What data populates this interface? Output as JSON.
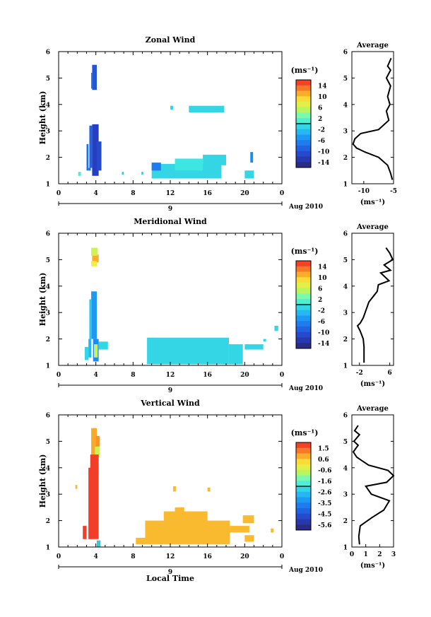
{
  "figure": {
    "xlabel_bottom": "Local Time",
    "date_label": "Aug 2010",
    "day_label": "9",
    "colorbar_unit": "(ms⁻¹)"
  },
  "chart_data": [
    {
      "type": "heatmap",
      "title": "Zonal Wind",
      "ylabel": "Height (km)",
      "xlabel": "Local Time",
      "xlim": [
        0,
        24
      ],
      "ylim": [
        1,
        6
      ],
      "xticks": [
        "0",
        "4",
        "8",
        "12",
        "16",
        "20",
        "0"
      ],
      "yticks": [
        "1",
        "2",
        "3",
        "4",
        "5",
        "6"
      ],
      "colorbar": {
        "unit": "(ms⁻¹)",
        "ticks": [
          "14",
          "10",
          "6",
          "2",
          "-2",
          "-6",
          "-10",
          "-14"
        ],
        "range": [
          -16,
          16
        ]
      },
      "cells": [
        {
          "x0": 3.6,
          "x1": 4.1,
          "y0": 4.55,
          "y1": 5.5,
          "v": -10
        },
        {
          "x0": 3.5,
          "x1": 3.7,
          "y0": 4.6,
          "y1": 5.2,
          "v": -8
        },
        {
          "x0": 3.6,
          "x1": 4.3,
          "y0": 1.3,
          "y1": 3.25,
          "v": -12
        },
        {
          "x0": 3.3,
          "x1": 3.6,
          "y0": 1.6,
          "y1": 3.2,
          "v": -9
        },
        {
          "x0": 3.0,
          "x1": 3.2,
          "y0": 1.5,
          "y1": 2.5,
          "v": -8
        },
        {
          "x0": 3.2,
          "x1": 3.45,
          "y0": 1.5,
          "y1": 1.6,
          "v": -8
        },
        {
          "x0": 4.1,
          "x1": 4.6,
          "y0": 1.5,
          "y1": 2.6,
          "v": -11
        },
        {
          "x0": 10.0,
          "x1": 17.5,
          "y0": 1.2,
          "y1": 1.75,
          "v": -1
        },
        {
          "x0": 10.0,
          "x1": 11.0,
          "y0": 1.5,
          "y1": 1.8,
          "v": -7
        },
        {
          "x0": 12.5,
          "x1": 15.5,
          "y0": 1.5,
          "y1": 1.95,
          "v": 0
        },
        {
          "x0": 15.5,
          "x1": 18.0,
          "y0": 1.7,
          "y1": 2.1,
          "v": -1
        },
        {
          "x0": 20.0,
          "x1": 21.0,
          "y0": 1.2,
          "y1": 1.5,
          "v": -1
        },
        {
          "x0": 20.6,
          "x1": 20.9,
          "y0": 1.8,
          "y1": 2.2,
          "v": -6
        },
        {
          "x0": 14.0,
          "x1": 17.8,
          "y0": 3.7,
          "y1": 3.95,
          "v": -1
        },
        {
          "x0": 12.0,
          "x1": 12.3,
          "y0": 3.8,
          "y1": 3.95,
          "v": -1
        },
        {
          "x0": 2.1,
          "x1": 2.4,
          "y0": 1.3,
          "y1": 1.45,
          "v": 1
        },
        {
          "x0": 6.8,
          "x1": 7.0,
          "y0": 1.35,
          "y1": 1.45,
          "v": -2
        },
        {
          "x0": 8.9,
          "x1": 9.1,
          "y0": 1.35,
          "y1": 1.45,
          "v": -2
        }
      ],
      "profile": {
        "title": "Average",
        "xlabel": "(ms⁻¹)",
        "xlim": [
          -12,
          -5
        ],
        "xticks": [
          "-10",
          "-5"
        ],
        "x": [
          -5.4,
          -6.0,
          -5.5,
          -6.2,
          -5.5,
          -6.0,
          -5.6,
          -6.2,
          -5.8,
          -7.5,
          -10.5,
          -11.5,
          -11.8,
          -11.2,
          -9.8,
          -7.5,
          -6.0,
          -5.5,
          -5.2
        ],
        "y": [
          5.75,
          5.45,
          5.3,
          5.0,
          4.7,
          4.3,
          4.0,
          3.75,
          3.4,
          3.05,
          2.9,
          2.7,
          2.5,
          2.35,
          2.2,
          2.0,
          1.7,
          1.4,
          1.15
        ]
      }
    },
    {
      "type": "heatmap",
      "title": "Meridional Wind",
      "ylabel": "Height (km)",
      "xlabel": "Local Time",
      "xlim": [
        0,
        24
      ],
      "ylim": [
        1,
        6
      ],
      "xticks": [
        "0",
        "4",
        "8",
        "12",
        "16",
        "20",
        "0"
      ],
      "yticks": [
        "1",
        "2",
        "3",
        "4",
        "5",
        "6"
      ],
      "colorbar": {
        "unit": "(ms⁻¹)",
        "ticks": [
          "14",
          "10",
          "6",
          "2",
          "-2",
          "-6",
          "-10",
          "-14"
        ],
        "range": [
          -16,
          16
        ]
      },
      "cells": [
        {
          "x0": 3.6,
          "x1": 4.3,
          "y0": 4.9,
          "y1": 5.2,
          "v": 11
        },
        {
          "x0": 3.5,
          "x1": 4.2,
          "y0": 5.15,
          "y1": 5.45,
          "v": 6
        },
        {
          "x0": 3.5,
          "x1": 4.1,
          "y0": 4.75,
          "y1": 4.95,
          "v": 8
        },
        {
          "x0": 3.5,
          "x1": 4.1,
          "y0": 2.0,
          "y1": 3.8,
          "v": -5
        },
        {
          "x0": 3.3,
          "x1": 3.55,
          "y0": 2.0,
          "y1": 3.5,
          "v": -2
        },
        {
          "x0": 3.7,
          "x1": 4.3,
          "y0": 1.15,
          "y1": 2.0,
          "v": -6
        },
        {
          "x0": 3.8,
          "x1": 4.2,
          "y0": 1.3,
          "y1": 1.8,
          "v": 6
        },
        {
          "x0": 3.2,
          "x1": 3.5,
          "y0": 1.3,
          "y1": 2.0,
          "v": -3
        },
        {
          "x0": 2.8,
          "x1": 3.2,
          "y0": 1.2,
          "y1": 1.7,
          "v": -1
        },
        {
          "x0": 4.3,
          "x1": 5.3,
          "y0": 1.6,
          "y1": 1.9,
          "v": -1
        },
        {
          "x0": 9.5,
          "x1": 18.3,
          "y0": 1.05,
          "y1": 2.05,
          "v": -1
        },
        {
          "x0": 18.3,
          "x1": 19.8,
          "y0": 1.05,
          "y1": 1.8,
          "v": -1
        },
        {
          "x0": 20.0,
          "x1": 22.0,
          "y0": 1.6,
          "y1": 1.8,
          "v": -1
        },
        {
          "x0": 23.2,
          "x1": 23.6,
          "y0": 2.3,
          "y1": 2.5,
          "v": -1
        },
        {
          "x0": 22.0,
          "x1": 22.3,
          "y0": 1.9,
          "y1": 2.0,
          "v": -1
        }
      ],
      "profile": {
        "title": "Average",
        "xlabel": "(ms⁻¹)",
        "xlim": [
          -4,
          7
        ],
        "xticks": [
          "-2",
          "6"
        ],
        "x": [
          5.0,
          6.0,
          6.8,
          4.5,
          6.2,
          3.6,
          5.8,
          3.0,
          2.7,
          0.5,
          -0.5,
          -1.0,
          -1.8,
          -2.5,
          -1.8,
          -1.0,
          -0.8,
          -0.8,
          -0.8
        ],
        "y": [
          5.45,
          5.25,
          5.0,
          4.8,
          4.6,
          4.5,
          4.2,
          4.05,
          3.8,
          3.4,
          3.0,
          2.8,
          2.6,
          2.5,
          2.3,
          2.0,
          1.7,
          1.35,
          1.1
        ]
      }
    },
    {
      "type": "heatmap",
      "title": "Vertical Wind",
      "ylabel": "Height (km)",
      "xlabel": "Local Time",
      "xlim": [
        0,
        24
      ],
      "ylim": [
        1,
        6
      ],
      "xticks": [
        "0",
        "4",
        "8",
        "12",
        "16",
        "20",
        "0"
      ],
      "yticks": [
        "1",
        "2",
        "3",
        "4",
        "5",
        "6"
      ],
      "colorbar": {
        "unit": "(ms⁻¹)",
        "ticks": [
          "1.5",
          "0.6",
          "-0.6",
          "-1.6",
          "-2.6",
          "-3.5",
          "-4.5",
          "-5.6"
        ],
        "range": [
          -6,
          2
        ]
      },
      "cells": [
        {
          "x0": 3.5,
          "x1": 4.1,
          "y0": 4.5,
          "y1": 5.5,
          "v": 0.8
        },
        {
          "x0": 3.9,
          "x1": 4.4,
          "y0": 4.4,
          "y1": 4.8,
          "v": -0.5
        },
        {
          "x0": 4.0,
          "x1": 4.4,
          "y0": 4.8,
          "y1": 5.2,
          "v": 1.0
        },
        {
          "x0": 3.4,
          "x1": 4.3,
          "y0": 1.3,
          "y1": 4.5,
          "v": 1.8
        },
        {
          "x0": 3.2,
          "x1": 3.5,
          "y0": 1.3,
          "y1": 4.0,
          "v": 1.8
        },
        {
          "x0": 2.6,
          "x1": 3.0,
          "y0": 1.3,
          "y1": 1.8,
          "v": 1.8
        },
        {
          "x0": 4.1,
          "x1": 4.5,
          "y0": 1.0,
          "y1": 1.25,
          "v": -2.5
        },
        {
          "x0": 9.3,
          "x1": 18.4,
          "y0": 1.1,
          "y1": 2.0,
          "v": 0.6
        },
        {
          "x0": 11.3,
          "x1": 16.0,
          "y0": 1.95,
          "y1": 2.35,
          "v": 0.6
        },
        {
          "x0": 12.5,
          "x1": 13.5,
          "y0": 2.3,
          "y1": 2.5,
          "v": 0.6
        },
        {
          "x0": 8.3,
          "x1": 9.3,
          "y0": 1.1,
          "y1": 1.35,
          "v": 0.6
        },
        {
          "x0": 18.4,
          "x1": 20.5,
          "y0": 1.55,
          "y1": 1.8,
          "v": 0.6
        },
        {
          "x0": 19.8,
          "x1": 21.0,
          "y0": 1.9,
          "y1": 2.2,
          "v": 0.6
        },
        {
          "x0": 20.0,
          "x1": 21.0,
          "y0": 1.2,
          "y1": 1.45,
          "v": 0.6
        },
        {
          "x0": 12.3,
          "x1": 12.6,
          "y0": 3.1,
          "y1": 3.3,
          "v": 0.6
        },
        {
          "x0": 16.0,
          "x1": 16.3,
          "y0": 3.1,
          "y1": 3.25,
          "v": 0.6
        },
        {
          "x0": 1.8,
          "x1": 2.0,
          "y0": 3.2,
          "y1": 3.35,
          "v": 0.6
        },
        {
          "x0": 22.8,
          "x1": 23.1,
          "y0": 1.55,
          "y1": 1.7,
          "v": 0.6
        }
      ],
      "profile": {
        "title": "Average",
        "xlabel": "(ms⁻¹)",
        "xlim": [
          0,
          3
        ],
        "xticks": [
          "0",
          "1",
          "2",
          "3"
        ],
        "x": [
          0.45,
          0.2,
          0.55,
          0.15,
          0.45,
          0.1,
          0.35,
          1.2,
          2.6,
          3.0,
          2.5,
          1.0,
          1.4,
          2.7,
          2.3,
          1.4,
          0.6,
          0.5,
          0.55
        ],
        "y": [
          5.6,
          5.4,
          5.25,
          5.0,
          4.85,
          4.6,
          4.4,
          4.1,
          3.9,
          3.7,
          3.45,
          3.3,
          3.0,
          2.75,
          2.4,
          2.1,
          1.8,
          1.4,
          1.1
        ]
      }
    }
  ]
}
